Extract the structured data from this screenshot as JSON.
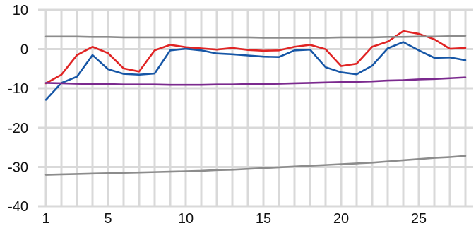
{
  "chart_data": {
    "type": "line",
    "title": "",
    "xlabel": "",
    "ylabel": "",
    "x": [
      1,
      2,
      3,
      4,
      5,
      6,
      7,
      8,
      9,
      10,
      11,
      12,
      13,
      14,
      15,
      16,
      17,
      18,
      19,
      20,
      21,
      22,
      23,
      24,
      25,
      26,
      27,
      28
    ],
    "xlim": [
      0.5,
      28.5
    ],
    "ylim": [
      -40,
      10
    ],
    "x_ticks": [
      1,
      5,
      10,
      15,
      20,
      25
    ],
    "x_tick_labels": [
      "1",
      "5",
      "10",
      "15",
      "20",
      "25"
    ],
    "y_ticks": [
      10,
      0,
      -10,
      -20,
      -30,
      -40
    ],
    "y_tick_labels": [
      "10",
      "0",
      "-10",
      "-20",
      "-30",
      "-40"
    ],
    "grid": true,
    "series": [
      {
        "color": "#e02424",
        "values": [
          -8.7,
          -6.5,
          -1.5,
          0.6,
          -1.0,
          -4.9,
          -5.7,
          -0.3,
          1.1,
          0.5,
          0.2,
          -0.1,
          0.3,
          -0.2,
          -0.4,
          -0.3,
          0.6,
          1.1,
          0.0,
          -4.3,
          -3.7,
          0.6,
          1.9,
          4.6,
          3.9,
          2.5,
          0.1,
          0.3
        ]
      },
      {
        "color": "#1656a6",
        "values": [
          -12.9,
          -8.6,
          -7.0,
          -1.5,
          -5.1,
          -6.3,
          -6.5,
          -6.2,
          -0.3,
          0.1,
          -0.3,
          -1.1,
          -1.3,
          -1.6,
          -1.9,
          -2.0,
          -0.3,
          -0.1,
          -4.6,
          -5.9,
          -6.4,
          -4.2,
          0.2,
          1.8,
          -0.3,
          -2.2,
          -2.1,
          -2.8
        ]
      },
      {
        "color": "#7b2a8e",
        "values": [
          -8.6,
          -8.7,
          -8.8,
          -8.9,
          -8.9,
          -9.0,
          -9.0,
          -9.0,
          -9.1,
          -9.1,
          -9.1,
          -9.0,
          -9.0,
          -8.9,
          -8.9,
          -8.8,
          -8.7,
          -8.6,
          -8.5,
          -8.4,
          -8.3,
          -8.2,
          -8.0,
          -7.9,
          -7.7,
          -7.6,
          -7.4,
          -7.2
        ]
      },
      {
        "color": "#8c8c8c",
        "values": [
          3.2,
          3.2,
          3.2,
          3.1,
          3.1,
          3.0,
          3.0,
          3.0,
          3.0,
          3.0,
          3.0,
          3.0,
          3.0,
          3.0,
          2.9,
          2.9,
          2.9,
          2.9,
          2.9,
          3.0,
          3.0,
          3.0,
          3.1,
          3.1,
          3.2,
          3.2,
          3.3,
          3.4
        ]
      },
      {
        "color": "#8c8c8c",
        "values": [
          -32.0,
          -31.9,
          -31.8,
          -31.7,
          -31.6,
          -31.5,
          -31.4,
          -31.3,
          -31.2,
          -31.1,
          -31.0,
          -30.8,
          -30.7,
          -30.5,
          -30.3,
          -30.1,
          -29.9,
          -29.7,
          -29.5,
          -29.3,
          -29.1,
          -28.9,
          -28.6,
          -28.3,
          -28.0,
          -27.7,
          -27.5,
          -27.2
        ]
      }
    ]
  }
}
